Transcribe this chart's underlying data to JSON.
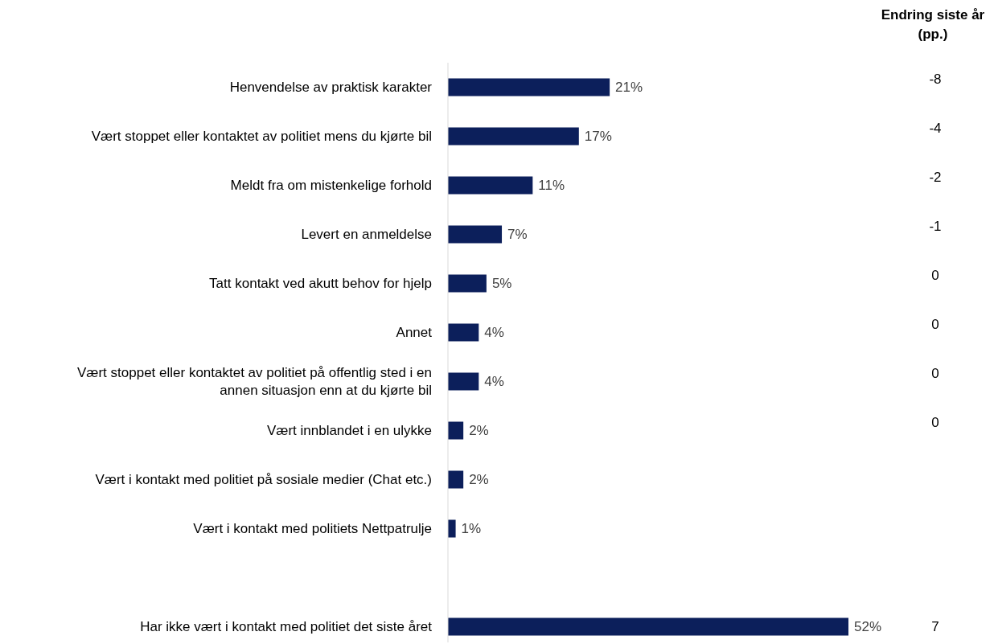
{
  "chart_data": {
    "type": "bar",
    "orientation": "horizontal",
    "categories": [
      "Henvendelse av praktisk karakter",
      "Vært stoppet eller kontaktet av politiet mens du kjørte bil",
      "Meldt fra om mistenkelige forhold",
      "Levert en anmeldelse",
      "Tatt kontakt ved akutt behov for hjelp",
      "Annet",
      "Vært stoppet eller kontaktet av politiet på offentlig sted i en annen situasjon enn at du kjørte bil",
      "Vært innblandet i en ulykke",
      "Vært i kontakt med politiet på sosiale medier (Chat etc.)",
      "Vært i kontakt med politiets Nettpatrulje",
      null,
      "Har ikke vært i kontakt med politiet det siste året"
    ],
    "values": [
      21,
      17,
      11,
      7,
      5,
      4,
      4,
      2,
      2,
      1,
      null,
      52
    ],
    "value_labels": [
      "21%",
      "17%",
      "11%",
      "7%",
      "5%",
      "4%",
      "4%",
      "2%",
      "2%",
      "1%",
      null,
      "52%"
    ],
    "color": "#0c1f5b",
    "annotations": [
      "Endring siste år (pp.)",
      "-8",
      "-4",
      "-2",
      "-1",
      "0",
      "0",
      "0",
      "0",
      "7"
    ]
  }
}
